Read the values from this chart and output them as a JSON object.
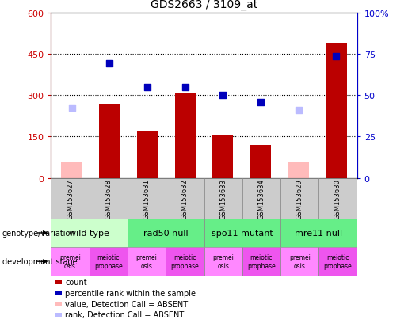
{
  "title": "GDS2663 / 3109_at",
  "samples": [
    "GSM153627",
    "GSM153628",
    "GSM153631",
    "GSM153632",
    "GSM153633",
    "GSM153634",
    "GSM153629",
    "GSM153630"
  ],
  "bar_values": [
    null,
    270,
    170,
    310,
    155,
    120,
    null,
    490
  ],
  "bar_absent": [
    55,
    null,
    null,
    null,
    null,
    null,
    55,
    null
  ],
  "scatter_values": [
    null,
    415,
    330,
    330,
    300,
    275,
    null,
    440
  ],
  "scatter_absent": [
    255,
    null,
    null,
    null,
    null,
    null,
    245,
    null
  ],
  "bar_color": "#bb0000",
  "bar_absent_color": "#ffbbbb",
  "scatter_color": "#0000bb",
  "scatter_absent_color": "#bbbbff",
  "ylim_left": [
    0,
    600
  ],
  "ylim_right": [
    0,
    100
  ],
  "yticks_left": [
    0,
    150,
    300,
    450,
    600
  ],
  "yticks_right": [
    0,
    25,
    50,
    75,
    100
  ],
  "ytick_labels_left": [
    "0",
    "150",
    "300",
    "450",
    "600"
  ],
  "ytick_labels_right": [
    "0",
    "25",
    "50",
    "75",
    "100%"
  ],
  "genotype_groups": [
    {
      "label": "wild type",
      "start": 0,
      "end": 2,
      "color": "#ccffcc"
    },
    {
      "label": "rad50 null",
      "start": 2,
      "end": 4,
      "color": "#66ee88"
    },
    {
      "label": "spo11 mutant",
      "start": 4,
      "end": 6,
      "color": "#66ee88"
    },
    {
      "label": "mre11 null",
      "start": 6,
      "end": 8,
      "color": "#66ee88"
    }
  ],
  "dev_stage_groups": [
    {
      "label": "premei\nosis",
      "start": 0,
      "end": 1,
      "color": "#ff88ff"
    },
    {
      "label": "meiotic\nprophase",
      "start": 1,
      "end": 2,
      "color": "#ee55ee"
    },
    {
      "label": "premei\nosis",
      "start": 2,
      "end": 3,
      "color": "#ff88ff"
    },
    {
      "label": "meiotic\nprophase",
      "start": 3,
      "end": 4,
      "color": "#ee55ee"
    },
    {
      "label": "premei\nosis",
      "start": 4,
      "end": 5,
      "color": "#ff88ff"
    },
    {
      "label": "meiotic\nprophase",
      "start": 5,
      "end": 6,
      "color": "#ee55ee"
    },
    {
      "label": "premei\nosis",
      "start": 6,
      "end": 7,
      "color": "#ff88ff"
    },
    {
      "label": "meiotic\nprophase",
      "start": 7,
      "end": 8,
      "color": "#ee55ee"
    }
  ],
  "legend_items": [
    {
      "label": "count",
      "color": "#bb0000"
    },
    {
      "label": "percentile rank within the sample",
      "color": "#0000bb"
    },
    {
      "label": "value, Detection Call = ABSENT",
      "color": "#ffbbbb"
    },
    {
      "label": "rank, Detection Call = ABSENT",
      "color": "#bbbbff"
    }
  ],
  "left_axis_color": "#cc0000",
  "right_axis_color": "#0000cc",
  "bar_width": 0.55,
  "sample_row_color": "#cccccc",
  "fig_bg": "#ffffff"
}
